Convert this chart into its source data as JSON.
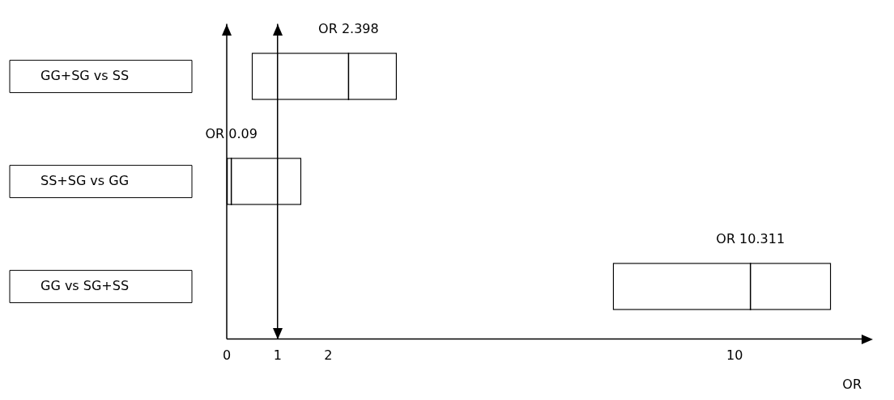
{
  "chart_data": {
    "type": "box",
    "orientation": "horizontal",
    "xlabel": "OR",
    "categories": [
      "GG+SG vs SS",
      "SS+SG vs GG",
      "GG vs SG+SS"
    ],
    "boxes": [
      {
        "low": 0.49,
        "q1": 0.49,
        "median": 2.398,
        "q3": 3.35,
        "high": 3.35
      },
      {
        "low": 0,
        "q1": 0,
        "median": 0.09,
        "q3": 1.47,
        "high": 1.47
      },
      {
        "low": 7.6,
        "q1": 7.6,
        "median": 10.311,
        "q3": 11.9,
        "high": 11.9
      }
    ],
    "color": "#000000",
    "xlim": [
      0,
      12.5
    ],
    "xticks": [
      0,
      1,
      2,
      10
    ],
    "ref_lines": [
      {
        "axis": "x",
        "value": 1,
        "color": "#000000"
      }
    ],
    "annotations": [
      {
        "text": "OR 2.398",
        "x": 2.398,
        "y": "GG+SG vs SS"
      },
      {
        "text": "OR 0.09",
        "x": 0.09,
        "y": "SS+SG vs GG"
      },
      {
        "text": "OR 10.311",
        "x": 10.311,
        "y": "GG vs SG+SS"
      }
    ],
    "grid": false,
    "legend": false
  }
}
